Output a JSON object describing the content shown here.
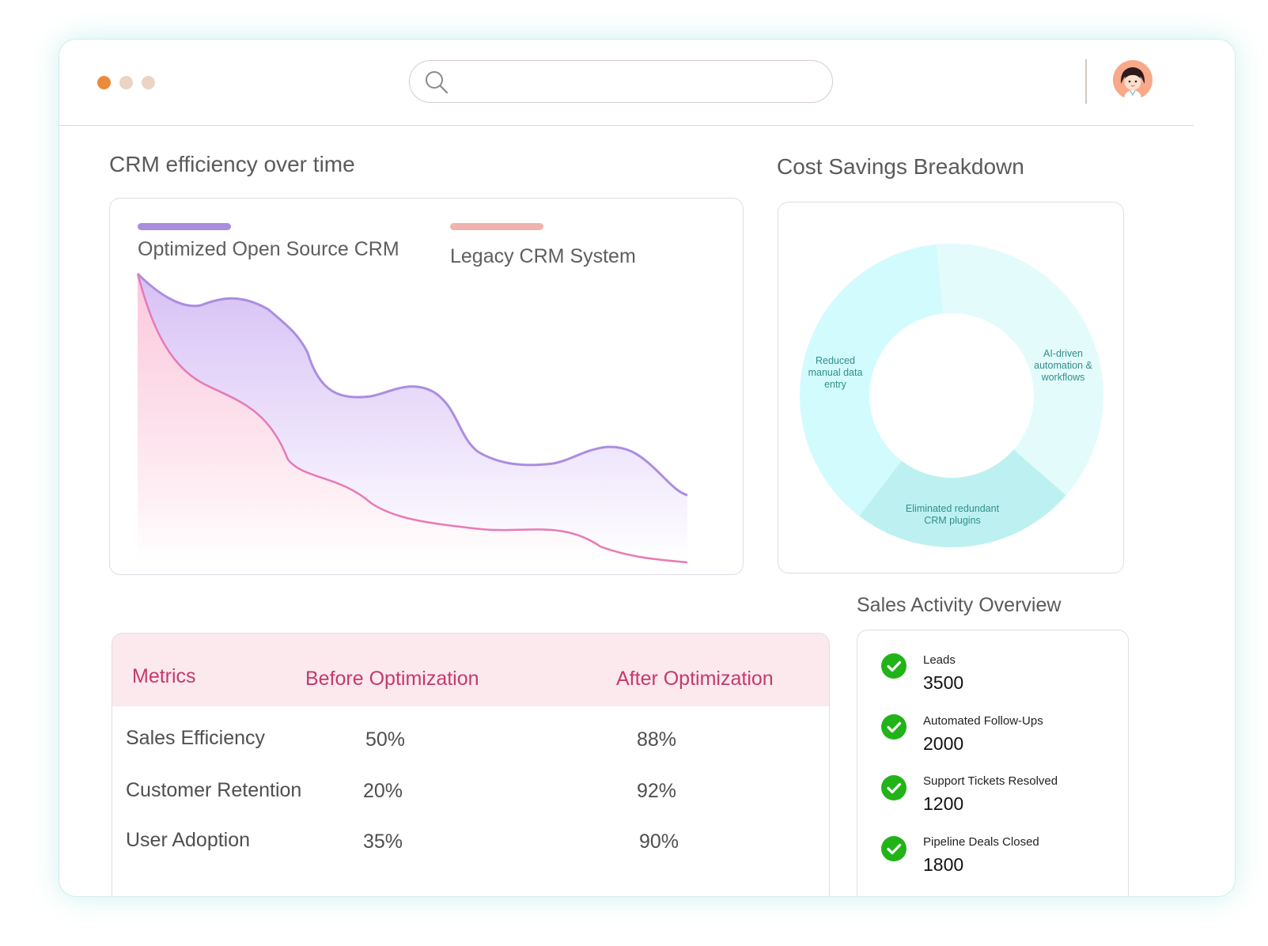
{
  "window": {
    "search": {
      "placeholder": "",
      "value": ""
    }
  },
  "efficiency_chart": {
    "title": "CRM efficiency over time",
    "legend": [
      {
        "name": "Optimized Open Source CRM",
        "color": "#ab8de0"
      },
      {
        "name": "Legacy CRM System",
        "color": "#efb3ae"
      }
    ]
  },
  "cost_savings": {
    "title": "Cost Savings Breakdown",
    "segments": [
      {
        "label": "AI-driven automation & workflows",
        "share": 0.38,
        "color": "#e4fbfc"
      },
      {
        "label": "Eliminated redundant CRM plugins",
        "share": 0.24,
        "color": "#bdf1f1"
      },
      {
        "label": "Reduced manual data entry",
        "share": 0.38,
        "color": "#d2fbfd"
      }
    ]
  },
  "metrics_table": {
    "headers": [
      "Metrics",
      "Before Optimization",
      "After Optimization"
    ],
    "rows": [
      {
        "metric": "Sales Efficiency",
        "before": "50%",
        "after": "88%"
      },
      {
        "metric": "Customer Retention",
        "before": "20%",
        "after": "92%"
      },
      {
        "metric": "User Adoption",
        "before": "35%",
        "after": "90%"
      }
    ]
  },
  "sales_activity": {
    "title": "Sales Activity Overview",
    "items": [
      {
        "label": "Leads",
        "value": "3500",
        "icon": "check-circle-icon"
      },
      {
        "label": "Automated Follow-Ups",
        "value": "2000",
        "icon": "check-circle-icon"
      },
      {
        "label": "Support Tickets Resolved",
        "value": "1200",
        "icon": "check-circle-icon"
      },
      {
        "label": "Pipeline Deals Closed",
        "value": "1800",
        "icon": "check-circle-icon"
      }
    ]
  }
}
